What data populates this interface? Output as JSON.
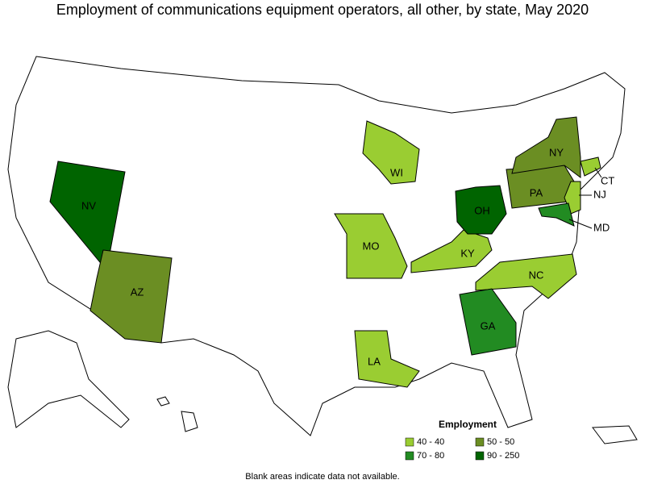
{
  "title": "Employment of communications equipment operators, all other, by state, May 2020",
  "states": [
    {
      "label": "NV",
      "color": "#006400"
    },
    {
      "label": "AZ",
      "color": "#6b8e23"
    },
    {
      "label": "WI",
      "color": "#9acd32"
    },
    {
      "label": "MO",
      "color": "#9acd32"
    },
    {
      "label": "KY",
      "color": "#9acd32"
    },
    {
      "label": "OH",
      "color": "#006400"
    },
    {
      "label": "PA",
      "color": "#6b8e23"
    },
    {
      "label": "NY",
      "color": "#6b8e23"
    },
    {
      "label": "NJ",
      "color": "#9acd32"
    },
    {
      "label": "CT",
      "color": "#9acd32"
    },
    {
      "label": "MD",
      "color": "#228b22"
    },
    {
      "label": "NC",
      "color": "#9acd32"
    },
    {
      "label": "GA",
      "color": "#228b22"
    },
    {
      "label": "LA",
      "color": "#9acd32"
    }
  ],
  "legend": {
    "title": "Employment",
    "items": [
      {
        "label": "40 - 40",
        "color": "#9acd32"
      },
      {
        "label": "50 - 50",
        "color": "#6b8e23"
      },
      {
        "label": "70 - 80",
        "color": "#228b22"
      },
      {
        "label": "90 - 250",
        "color": "#006400"
      }
    ]
  },
  "note": "Blank areas indicate data not available."
}
